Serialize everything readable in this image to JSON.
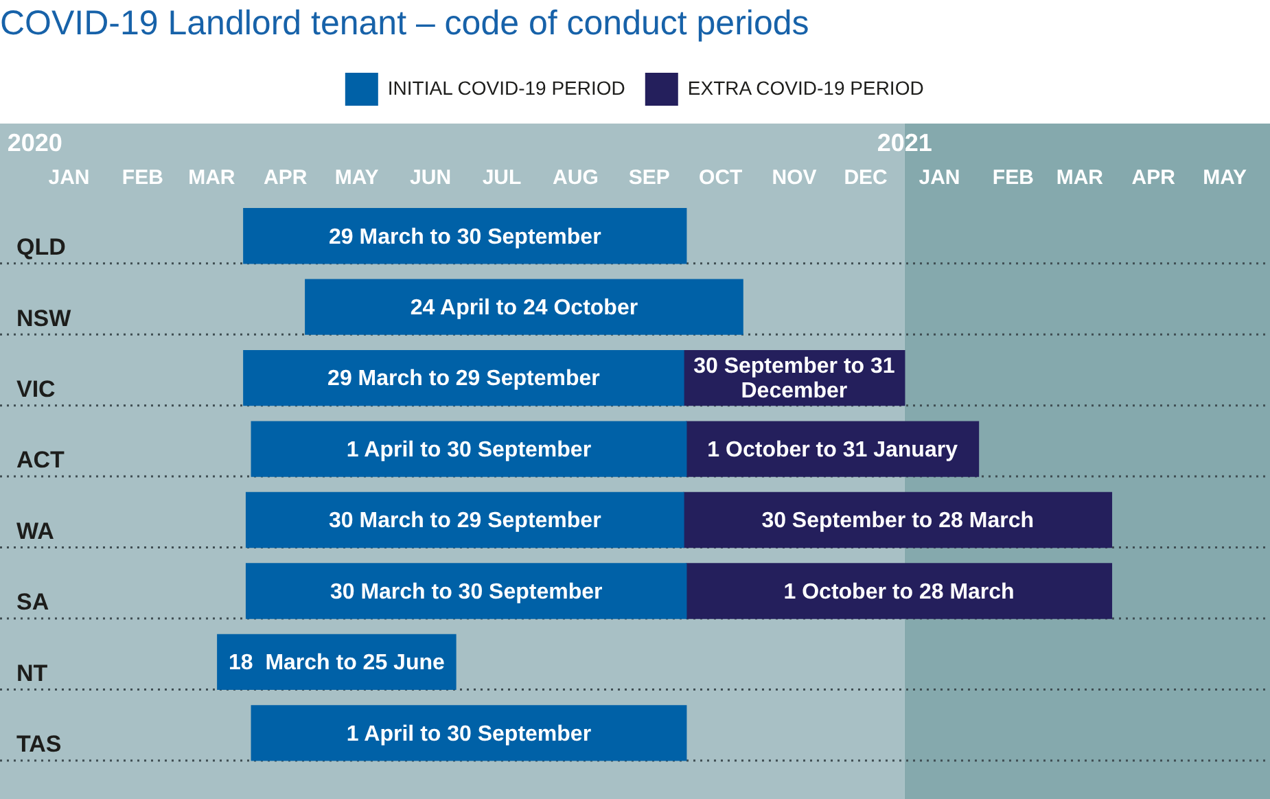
{
  "chart_data": {
    "type": "bar",
    "orientation": "horizontal",
    "title": "COVID-19 Landlord tenant – code of conduct periods",
    "categories": [
      "QLD",
      "NSW",
      "VIC",
      "ACT",
      "WA",
      "SA",
      "NT",
      "TAS"
    ],
    "series": [
      {
        "name": "INITIAL COVID-19 PERIOD",
        "color": "#0061a7",
        "base": [
          2020.24,
          2020.311,
          2020.24,
          2020.249,
          2020.243,
          2020.243,
          2020.21,
          2020.249
        ],
        "values": [
          0.509,
          0.503,
          0.506,
          0.5,
          0.503,
          0.506,
          0.274,
          0.5
        ]
      },
      {
        "name": "EXTRA COVID-19 PERIOD",
        "color": "#241f5c",
        "base": [
          null,
          null,
          2020.746,
          2020.749,
          2020.746,
          2020.749,
          null,
          null
        ],
        "values": [
          null,
          null,
          0.254,
          0.336,
          0.492,
          0.489,
          null,
          null
        ]
      }
    ],
    "annotations": [
      "29 March to 30 September",
      "24 April to 24 October",
      "29 March to 29 September",
      "30 September to 31 December",
      "1 April to 30 September",
      "1 October to 31 January",
      "30 March to 29 September",
      "30 September to 28 March",
      "30 March to 30 September",
      "1 October to 28 March",
      "18  March to 25 June",
      "1 April to 30 September"
    ],
    "xlim": [
      2019.96,
      2021.42
    ],
    "xticks": [
      2020,
      2021
    ],
    "x2lim": [
      "2019-12-17",
      "2021-06-03"
    ],
    "x2ticks": [
      {
        "value": "2020-01-15",
        "label": "JAN"
      },
      {
        "value": "2020-02-15",
        "label": "FEB"
      },
      {
        "value": "2020-03-15",
        "label": "MAR"
      },
      {
        "value": "2020-04-15",
        "label": "APR"
      },
      {
        "value": "2020-05-15",
        "label": "MAY"
      },
      {
        "value": "2020-06-15",
        "label": "JUN"
      },
      {
        "value": "2020-07-15",
        "label": "JUL"
      },
      {
        "value": "2020-08-15",
        "label": "AUG"
      },
      {
        "value": "2020-09-15",
        "label": "SEP"
      },
      {
        "value": "2020-10-15",
        "label": "OCT"
      },
      {
        "value": "2020-11-15",
        "label": "NOV"
      },
      {
        "value": "2020-12-15",
        "label": "DEC"
      },
      {
        "value": "2021-01-15",
        "label": "JAN"
      },
      {
        "value": "2021-02-15",
        "label": "FEB"
      },
      {
        "value": "2021-03-15",
        "label": "MAR"
      },
      {
        "value": "2021-04-15",
        "label": "APR"
      },
      {
        "value": "2021-05-15",
        "label": "MAY"
      }
    ],
    "bands": [
      {
        "axis": "x",
        "from": 2019.96,
        "to": 2021,
        "color": "#a8c0c5"
      },
      {
        "axis": "x",
        "from": 2021,
        "to": 2021.42,
        "color": "#85a9ad"
      }
    ],
    "grid": "y",
    "legend": "top"
  }
}
